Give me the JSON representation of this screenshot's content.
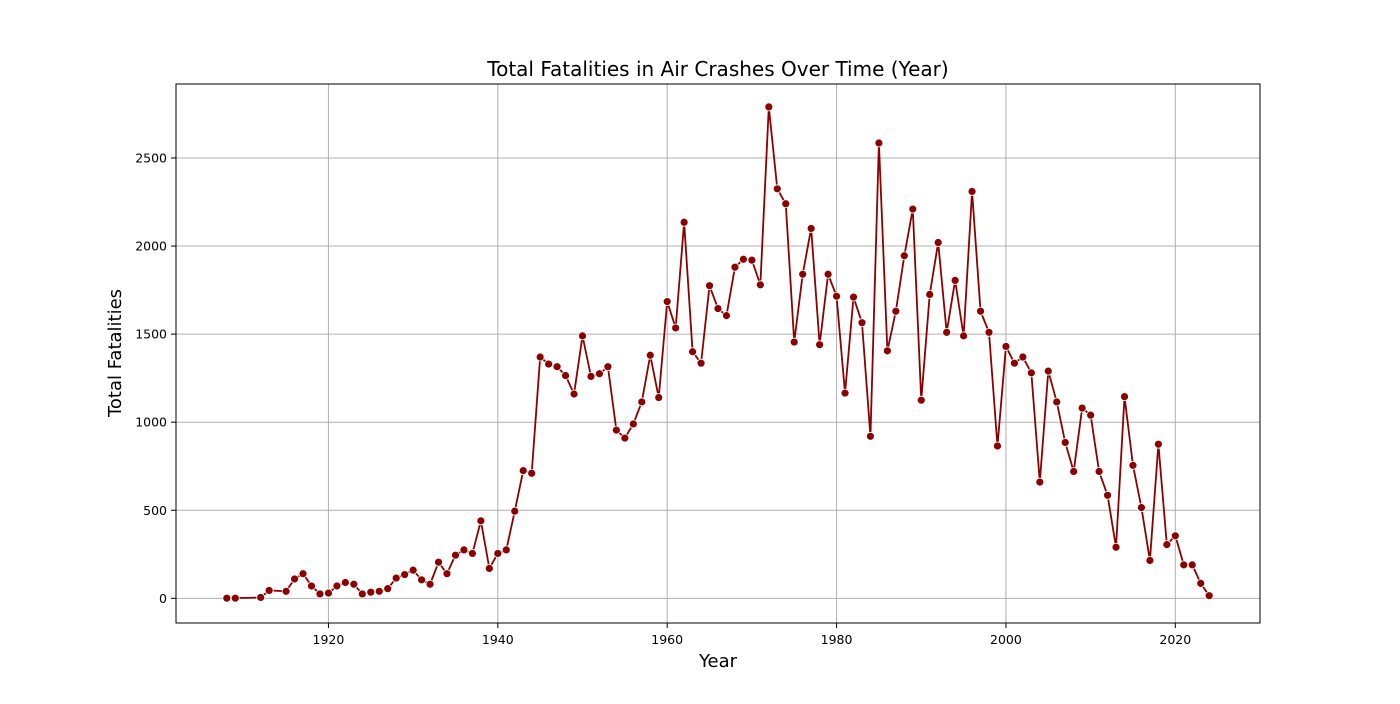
{
  "chart_data": {
    "type": "line",
    "title": "Total Fatalities in Air Crashes Over Time (Year)",
    "xlabel": "Year",
    "ylabel": "Total Fatalities",
    "xlim": [
      1902,
      2030
    ],
    "ylim": [
      -140,
      2920
    ],
    "xticks": [
      1920,
      1940,
      1960,
      1980,
      2000,
      2020
    ],
    "yticks": [
      0,
      500,
      1000,
      1500,
      2000,
      2500
    ],
    "grid": true,
    "line_color": "#8b0000",
    "marker": "circle",
    "series": [
      {
        "x": [
          1908,
          1909,
          1912,
          1913,
          1915,
          1916,
          1917,
          1918,
          1919,
          1920,
          1921,
          1922,
          1923,
          1924,
          1925,
          1926,
          1927,
          1928,
          1929,
          1930,
          1931,
          1932,
          1933,
          1934,
          1935,
          1936,
          1937,
          1938,
          1939,
          1940,
          1941,
          1942,
          1943,
          1944,
          1945,
          1946,
          1947,
          1948,
          1949,
          1950,
          1951,
          1952,
          1953,
          1954,
          1955,
          1956,
          1957,
          1958,
          1959,
          1960,
          1961,
          1962,
          1963,
          1964,
          1965,
          1966,
          1967,
          1968,
          1969,
          1970,
          1971,
          1972,
          1973,
          1974,
          1975,
          1976,
          1977,
          1978,
          1979,
          1980,
          1981,
          1982,
          1983,
          1984,
          1985,
          1986,
          1987,
          1988,
          1989,
          1990,
          1991,
          1992,
          1993,
          1994,
          1995,
          1996,
          1997,
          1998,
          1999,
          2000,
          2001,
          2002,
          2003,
          2004,
          2005,
          2006,
          2007,
          2008,
          2009,
          2010,
          2011,
          2012,
          2013,
          2014,
          2015,
          2016,
          2017,
          2018,
          2019,
          2020,
          2021,
          2022,
          2023,
          2024
        ],
        "y": [
          1,
          1,
          5,
          45,
          40,
          110,
          140,
          70,
          25,
          30,
          70,
          90,
          80,
          25,
          35,
          40,
          55,
          115,
          135,
          160,
          105,
          80,
          205,
          140,
          245,
          275,
          255,
          440,
          170,
          255,
          275,
          495,
          725,
          710,
          1370,
          1330,
          1315,
          1265,
          1160,
          1490,
          1260,
          1275,
          1315,
          955,
          910,
          990,
          1115,
          1380,
          1140,
          1685,
          1535,
          2135,
          1400,
          1335,
          1775,
          1645,
          1605,
          1880,
          1925,
          1920,
          1780,
          2790,
          2325,
          2240,
          1455,
          1840,
          2100,
          1440,
          1840,
          1715,
          1165,
          1710,
          1565,
          920,
          2585,
          1405,
          1630,
          1945,
          2210,
          1125,
          1725,
          2020,
          1510,
          1805,
          1490,
          2310,
          1630,
          1510,
          865,
          1430,
          1335,
          1370,
          1280,
          660,
          1290,
          1115,
          885,
          720,
          1080,
          1040,
          720,
          585,
          290,
          1145,
          755,
          515,
          215,
          875,
          305,
          355,
          190,
          190,
          85,
          15
        ]
      }
    ]
  }
}
